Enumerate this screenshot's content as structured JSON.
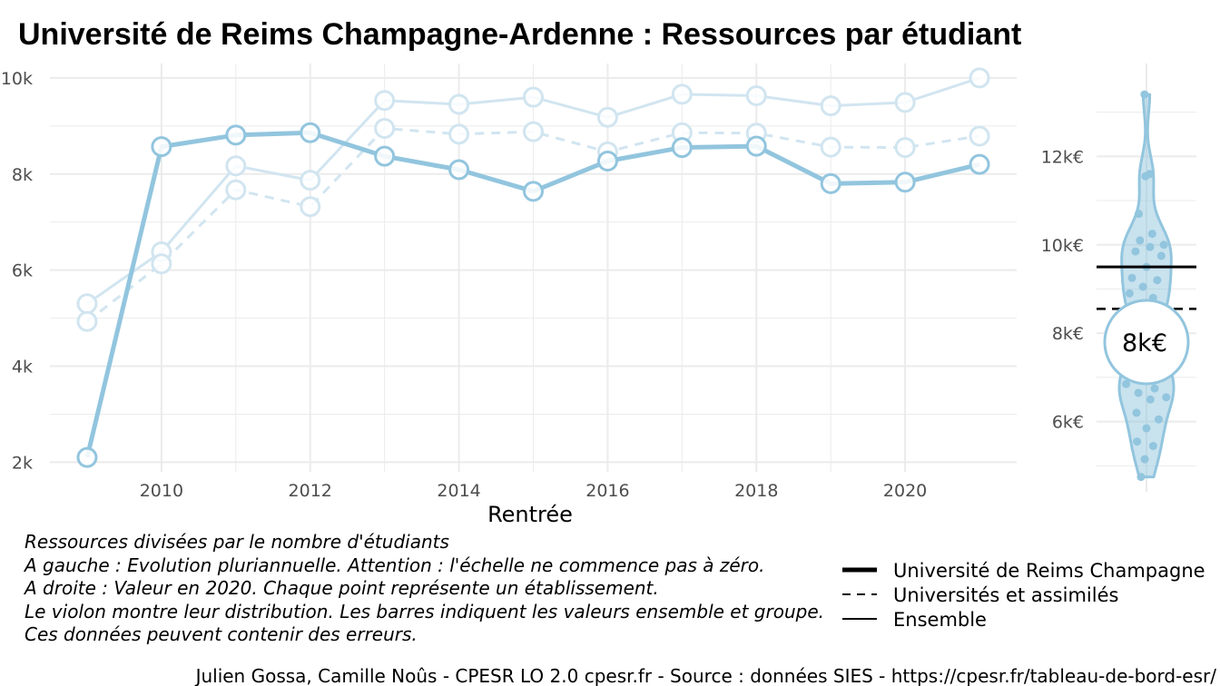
{
  "title": "Université de Reims Champagne-Ardenne  :  Ressources par étudiant",
  "colors": {
    "main": "#92c5de",
    "light": "#d1e5f0",
    "grid": "#ebebeb",
    "black": "#000000"
  },
  "chart_data": [
    {
      "type": "line",
      "xlabel": "Rentrée",
      "ylabel": "",
      "xlim": [
        2008.5,
        2021.5
      ],
      "ylim": [
        1800,
        10300
      ],
      "x_ticks": [
        2010,
        2012,
        2014,
        2016,
        2018,
        2020
      ],
      "y_ticks": [
        2000,
        4000,
        6000,
        8000,
        10000
      ],
      "y_tick_labels": [
        "2k",
        "4k",
        "6k",
        "8k",
        "10k"
      ],
      "grid": true,
      "x": [
        2009,
        2010,
        2011,
        2012,
        2013,
        2014,
        2015,
        2016,
        2017,
        2018,
        2019,
        2020,
        2021
      ],
      "series": [
        {
          "name": "Université de Reims Champagne",
          "style": "solid-thick",
          "values": [
            2100,
            8570,
            8810,
            8860,
            8370,
            8090,
            7640,
            8270,
            8550,
            8580,
            7800,
            7830,
            8200
          ]
        },
        {
          "name": "Universités et assimilés",
          "style": "dashed",
          "values": [
            4930,
            6130,
            7670,
            7320,
            8950,
            8830,
            8880,
            8460,
            8860,
            8850,
            8560,
            8550,
            8790
          ]
        },
        {
          "name": "Ensemble",
          "style": "solid-thin",
          "values": [
            5300,
            6380,
            8170,
            7870,
            9530,
            9450,
            9600,
            9180,
            9660,
            9630,
            9420,
            9490,
            10000
          ]
        }
      ]
    },
    {
      "type": "violin",
      "ylim": [
        4700,
        14100
      ],
      "y_ticks": [
        6000,
        8000,
        10000,
        12000
      ],
      "y_tick_labels": [
        "6k€",
        "8k€",
        "10k€",
        "12k€"
      ],
      "grid": true,
      "highlight_value": 7800,
      "highlight_label": "8k€",
      "ensemble_value": 9500,
      "group_value": 8550,
      "points": [
        4750,
        5150,
        5450,
        5550,
        5850,
        6050,
        6200,
        6500,
        6550,
        6650,
        6750,
        6850,
        6950,
        7050,
        7250,
        7450,
        7650,
        7900,
        8100,
        8400,
        8600,
        8800,
        8900,
        9050,
        9200,
        9250,
        9500,
        9750,
        9850,
        9950,
        10000,
        10100,
        10250,
        10700,
        11550,
        11600,
        13400
      ]
    }
  ],
  "notes": [
    "Ressources divisées par le nombre d'étudiants",
    "A gauche : Evolution pluriannuelle. Attention : l'échelle ne commence pas à zéro.",
    "A droite : Valeur en 2020. Chaque point représente un établissement.",
    "Le violon montre leur distribution. Les barres indiquent les valeurs ensemble et groupe.",
    "Ces données peuvent contenir des erreurs."
  ],
  "legend": [
    {
      "label": "Université de Reims Champagne",
      "style": "solid-thick"
    },
    {
      "label": "Universités et assimilés",
      "style": "dashed"
    },
    {
      "label": "Ensemble",
      "style": "solid-thin"
    }
  ],
  "caption": "Julien Gossa, Camille Noûs - CPESR LO 2.0 cpesr.fr - Source : données SIES - https://cpesr.fr/tableau-de-bord-esr/"
}
